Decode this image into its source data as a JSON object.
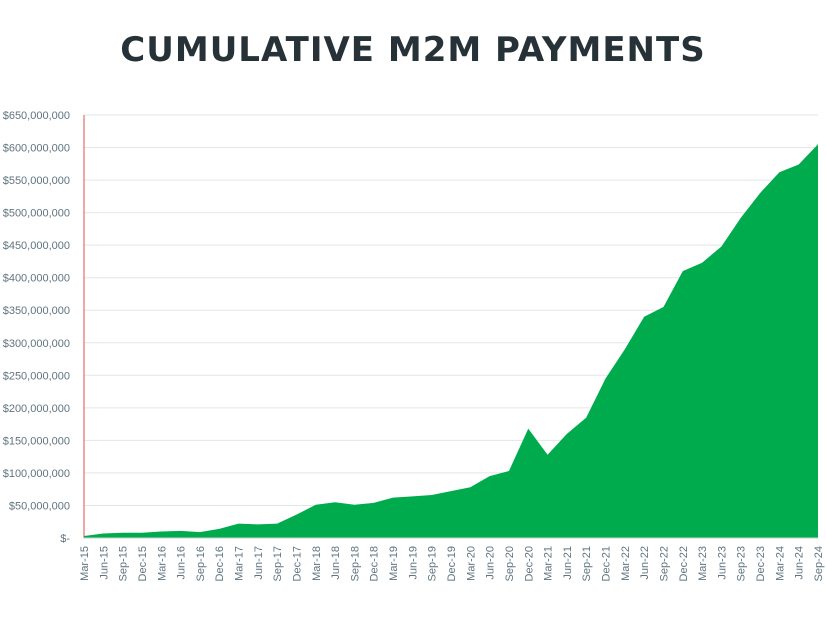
{
  "chart_data": {
    "type": "area",
    "title": "CUMULATIVE M2M PAYMENTS",
    "xlabel": "",
    "ylabel": "",
    "ylim": [
      0,
      650000000
    ],
    "grid": true,
    "color": "#00ab4e",
    "y_ticks": [
      0,
      50000000,
      100000000,
      150000000,
      200000000,
      250000000,
      300000000,
      350000000,
      400000000,
      450000000,
      500000000,
      550000000,
      600000000,
      650000000
    ],
    "y_tick_labels": [
      "$-",
      "$50,000,000",
      "$100,000,000",
      "$150,000,000",
      "$200,000,000",
      "$250,000,000",
      "$300,000,000",
      "$350,000,000",
      "$400,000,000",
      "$450,000,000",
      "$500,000,000",
      "$550,000,000",
      "$600,000,000",
      "$650,000,000"
    ],
    "x_tick_labels": [
      "Mar-15",
      "Jun-15",
      "Sep-15",
      "Dec-15",
      "Mar-16",
      "Jun-16",
      "Sep-16",
      "Dec-16",
      "Mar-17",
      "Jun-17",
      "Sep-17",
      "Dec-17",
      "Mar-18",
      "Jun-18",
      "Sep-18",
      "Dec-18",
      "Mar-19",
      "Jun-19",
      "Sep-19",
      "Dec-19",
      "Mar-20",
      "Jun-20",
      "Sep-20",
      "Dec-20",
      "Mar-21",
      "Jun-21",
      "Sep-21",
      "Dec-21",
      "Mar-22",
      "Jun-22",
      "Sep-22",
      "Dec-22",
      "Mar-23",
      "Jun-23",
      "Sep-23",
      "Dec-23",
      "Mar-24",
      "Jun-24",
      "Sep-24"
    ],
    "x": [
      "Mar-15",
      "Jun-15",
      "Sep-15",
      "Dec-15",
      "Mar-16",
      "Jun-16",
      "Sep-16",
      "Dec-16",
      "Mar-17",
      "Jun-17",
      "Sep-17",
      "Dec-17",
      "Mar-18",
      "Jun-18",
      "Sep-18",
      "Dec-18",
      "Mar-19",
      "Jun-19",
      "Sep-19",
      "Dec-19",
      "Mar-20",
      "Jun-20",
      "Sep-20",
      "Dec-20",
      "Mar-21",
      "Jun-21",
      "Sep-21",
      "Dec-21",
      "Mar-22",
      "Jun-22",
      "Sep-22",
      "Dec-22",
      "Mar-23",
      "Jun-23",
      "Sep-23",
      "Dec-23",
      "Mar-24",
      "Jun-24",
      "Sep-24"
    ],
    "values": [
      3000000,
      7000000,
      8000000,
      8000000,
      10000000,
      11000000,
      9000000,
      14000000,
      22000000,
      21000000,
      22000000,
      36000000,
      51000000,
      55000000,
      51000000,
      54000000,
      62000000,
      64000000,
      66000000,
      72000000,
      78000000,
      95000000,
      103000000,
      168000000,
      128000000,
      160000000,
      185000000,
      245000000,
      290000000,
      340000000,
      355000000,
      410000000,
      423000000,
      448000000,
      492000000,
      530000000,
      562000000,
      574000000,
      605000000
    ]
  }
}
